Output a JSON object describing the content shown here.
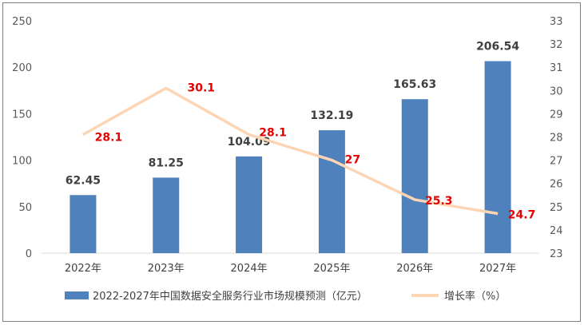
{
  "chart_data": {
    "type": "bar",
    "categories": [
      "2022年",
      "2023年",
      "2024年",
      "2025年",
      "2026年",
      "2027年"
    ],
    "series": [
      {
        "name": "2022-2027年中国数据安全服务行业市场规模预测（亿元）",
        "type": "bar",
        "axis": "left",
        "values": [
          62.45,
          81.25,
          104.09,
          132.19,
          165.63,
          206.54
        ],
        "labels": [
          "62.45",
          "81.25",
          "104.09",
          "132.19",
          "165.63",
          "206.54"
        ],
        "color": "#4f81bd"
      },
      {
        "name": "增长率（%）",
        "type": "line",
        "axis": "right",
        "values": [
          28.1,
          30.1,
          28.1,
          27,
          25.3,
          24.7
        ],
        "labels": [
          "28.1",
          "30.1",
          "28.1",
          "27",
          "25.3",
          "24.7"
        ],
        "color": "#fcd5b5"
      }
    ],
    "y_left": {
      "range": [
        0,
        250
      ],
      "ticks": [
        "0",
        "50",
        "100",
        "150",
        "200",
        "250"
      ]
    },
    "y_right": {
      "range": [
        23,
        33
      ],
      "ticks": [
        "23",
        "24",
        "25",
        "26",
        "27",
        "28",
        "29",
        "30",
        "31",
        "32",
        "33"
      ]
    },
    "grid": false,
    "legend": "bottom",
    "label_color": "#e60000"
  }
}
